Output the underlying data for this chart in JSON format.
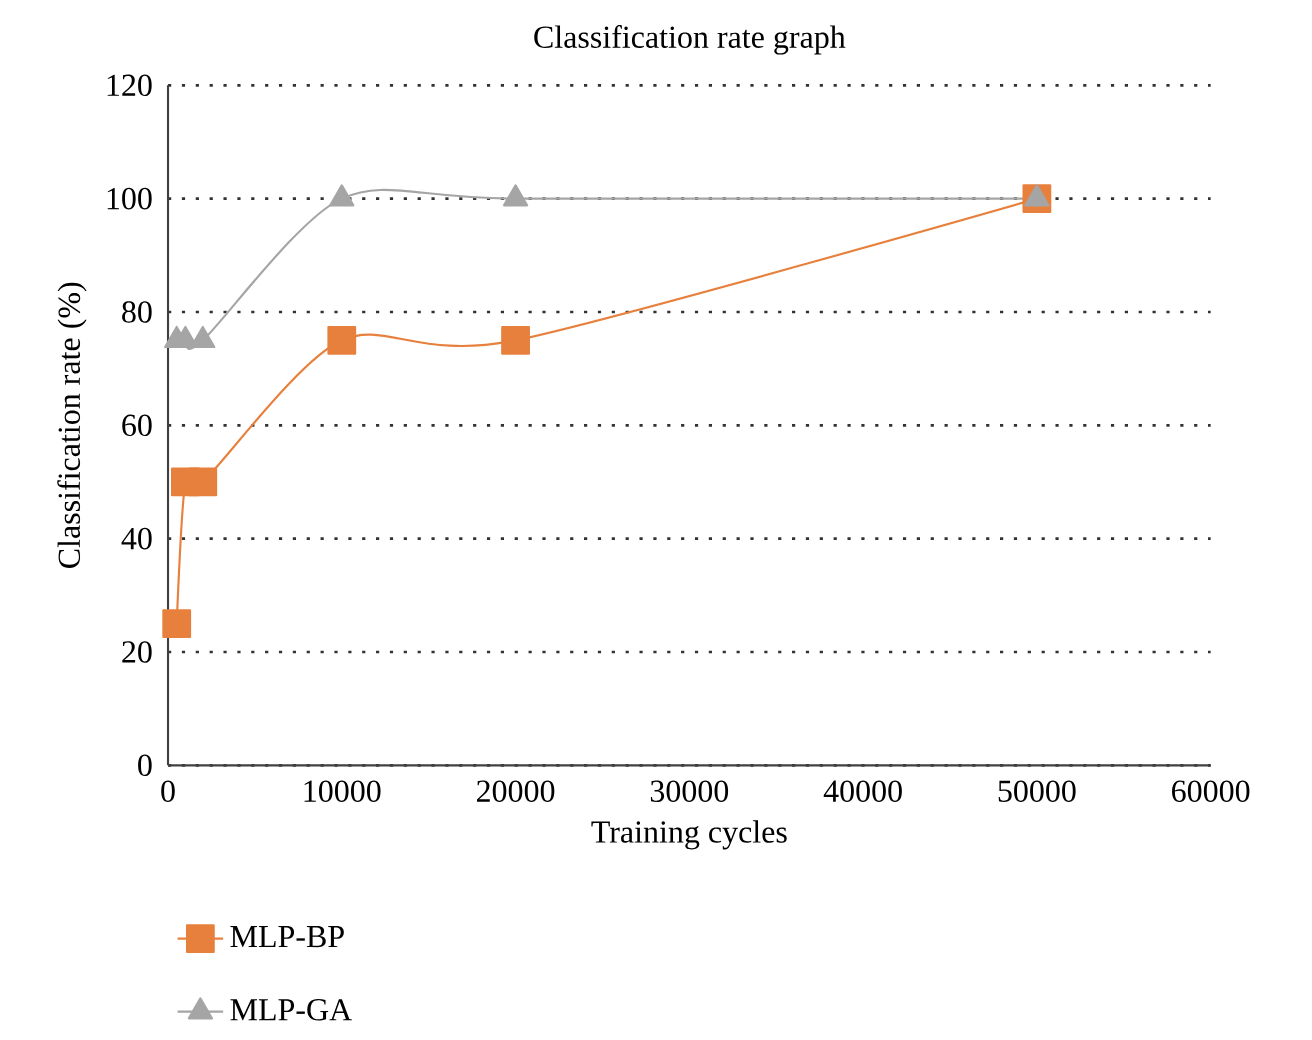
{
  "chart_data": {
    "type": "line",
    "title": "Classification rate graph",
    "xlabel": "Training cycles",
    "ylabel": "Classification rate (%)",
    "xlim": [
      0,
      60000
    ],
    "xticks": [
      0,
      10000,
      20000,
      30000,
      40000,
      50000,
      60000
    ],
    "ylim": [
      0,
      120
    ],
    "yticks": [
      0,
      20,
      40,
      60,
      80,
      100,
      120
    ],
    "grid": "y",
    "legend": "bottom",
    "line_style": "solid",
    "series": [
      {
        "name": "MLP-BP",
        "color": "#e8803d",
        "marker": "square",
        "x": [
          500,
          1000,
          2000,
          10000,
          20000,
          50000
        ],
        "values": [
          25,
          50,
          50,
          75,
          75,
          100
        ]
      },
      {
        "name": "MLP-GA",
        "color": "#a5a5a5",
        "marker": "triangle",
        "x": [
          500,
          1000,
          2000,
          10000,
          20000,
          50000
        ],
        "values": [
          75,
          75,
          75,
          100,
          100,
          100
        ]
      }
    ]
  }
}
